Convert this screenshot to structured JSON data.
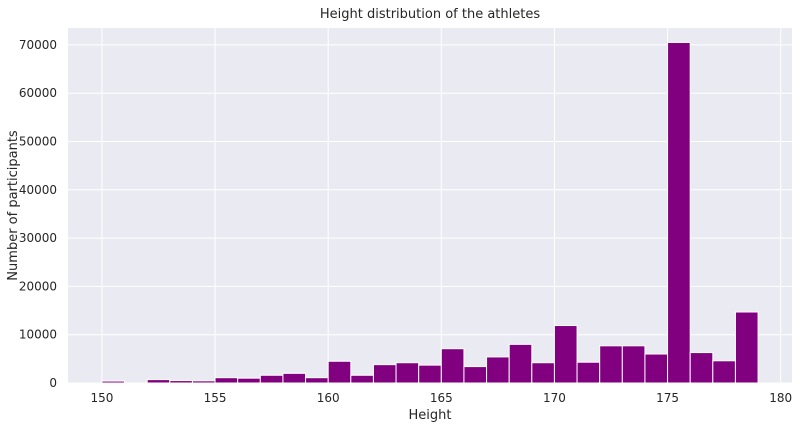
{
  "chart_data": {
    "type": "bar",
    "title": "Height distribution of the athletes",
    "xlabel": "Height",
    "ylabel": "Number of participants",
    "xlim": [
      148.5,
      180.5
    ],
    "ylim": [
      0,
      73500
    ],
    "xticks": [
      150,
      155,
      160,
      165,
      170,
      175,
      180
    ],
    "yticks": [
      0,
      10000,
      20000,
      30000,
      40000,
      50000,
      60000,
      70000
    ],
    "grid": true,
    "legend": "none",
    "colors": {
      "bar": "#800080",
      "plot_background": "#eaeaf2",
      "grid": "#ffffff"
    },
    "bin_width": 1,
    "bins": [
      {
        "x": 150.0,
        "value": 400
      },
      {
        "x": 151.0,
        "value": 0
      },
      {
        "x": 152.0,
        "value": 700
      },
      {
        "x": 153.0,
        "value": 500
      },
      {
        "x": 154.0,
        "value": 450
      },
      {
        "x": 155.0,
        "value": 1100
      },
      {
        "x": 156.0,
        "value": 1000
      },
      {
        "x": 157.0,
        "value": 1600
      },
      {
        "x": 158.0,
        "value": 2000
      },
      {
        "x": 159.0,
        "value": 1100
      },
      {
        "x": 160.0,
        "value": 4500
      },
      {
        "x": 161.0,
        "value": 1600
      },
      {
        "x": 162.0,
        "value": 3800
      },
      {
        "x": 163.0,
        "value": 4200
      },
      {
        "x": 164.0,
        "value": 3700
      },
      {
        "x": 165.0,
        "value": 7100
      },
      {
        "x": 166.0,
        "value": 3400
      },
      {
        "x": 167.0,
        "value": 5400
      },
      {
        "x": 168.0,
        "value": 8000
      },
      {
        "x": 169.0,
        "value": 4200
      },
      {
        "x": 170.0,
        "value": 11900
      },
      {
        "x": 171.0,
        "value": 4300
      },
      {
        "x": 172.0,
        "value": 7700
      },
      {
        "x": 173.0,
        "value": 7700
      },
      {
        "x": 174.0,
        "value": 6000
      },
      {
        "x": 175.0,
        "value": 70500
      },
      {
        "x": 176.0,
        "value": 6300
      },
      {
        "x": 177.0,
        "value": 4600
      },
      {
        "x": 178.0,
        "value": 14700
      }
    ]
  }
}
